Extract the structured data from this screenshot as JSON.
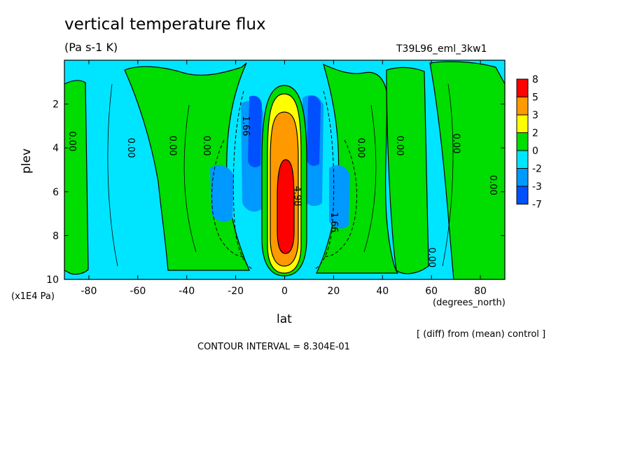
{
  "chart_data": {
    "type": "heatmap",
    "title": "vertical temperature flux",
    "subtitle": "(Pa s-1 K)",
    "run_label": "T39L96_eml_3kw1",
    "xlabel": "lat",
    "x_units": "(degrees_north)",
    "ylabel": "plev",
    "y_units": "(x1E4 Pa)",
    "xlim": [
      -90,
      90
    ],
    "ylim": [
      10,
      0
    ],
    "x_ticks": [
      -80,
      -60,
      -40,
      -20,
      0,
      20,
      40,
      60,
      80
    ],
    "x_tick_labels": [
      "-80",
      "-60",
      "-40",
      "-20",
      "0",
      "20",
      "40",
      "60",
      "80"
    ],
    "y_ticks": [
      2,
      4,
      6,
      8,
      10
    ],
    "y_tick_labels": [
      "2",
      "4",
      "6",
      "8",
      "10"
    ],
    "colorbar_labels": [
      "8",
      "5",
      "3",
      "2",
      "0",
      "-2",
      "-3",
      "-7"
    ],
    "colorbar_colors": [
      "#ff0000",
      "#ff9900",
      "#ffff00",
      "#00dd00",
      "#00e5ff",
      "#0099ff",
      "#0050ff"
    ],
    "contour_labels": [
      {
        "text": "0.00",
        "lat": -87,
        "plev": 3.7
      },
      {
        "text": "0.00",
        "lat": -63,
        "plev": 4.0
      },
      {
        "text": "0.00",
        "lat": -46,
        "plev": 3.9
      },
      {
        "text": "0.00",
        "lat": -32,
        "plev": 3.9
      },
      {
        "text": "1.66",
        "lat": -16,
        "plev": 3.0
      },
      {
        "text": "4.98",
        "lat": 5,
        "plev": 6.2
      },
      {
        "text": "1.66",
        "lat": 20,
        "plev": 7.4
      },
      {
        "text": "0.00",
        "lat": 31,
        "plev": 4.0
      },
      {
        "text": "0.00",
        "lat": 47,
        "plev": 3.9
      },
      {
        "text": "0.00",
        "lat": 70,
        "plev": 3.8
      },
      {
        "text": "0.00",
        "lat": 85,
        "plev": 5.7
      },
      {
        "text": "0.00",
        "lat": 60,
        "plev": 9.0
      }
    ],
    "legend_position": "right",
    "annotation": "[ (diff) from (mean) control ]",
    "contour_interval": "CONTOUR INTERVAL = 8.304E-01"
  }
}
